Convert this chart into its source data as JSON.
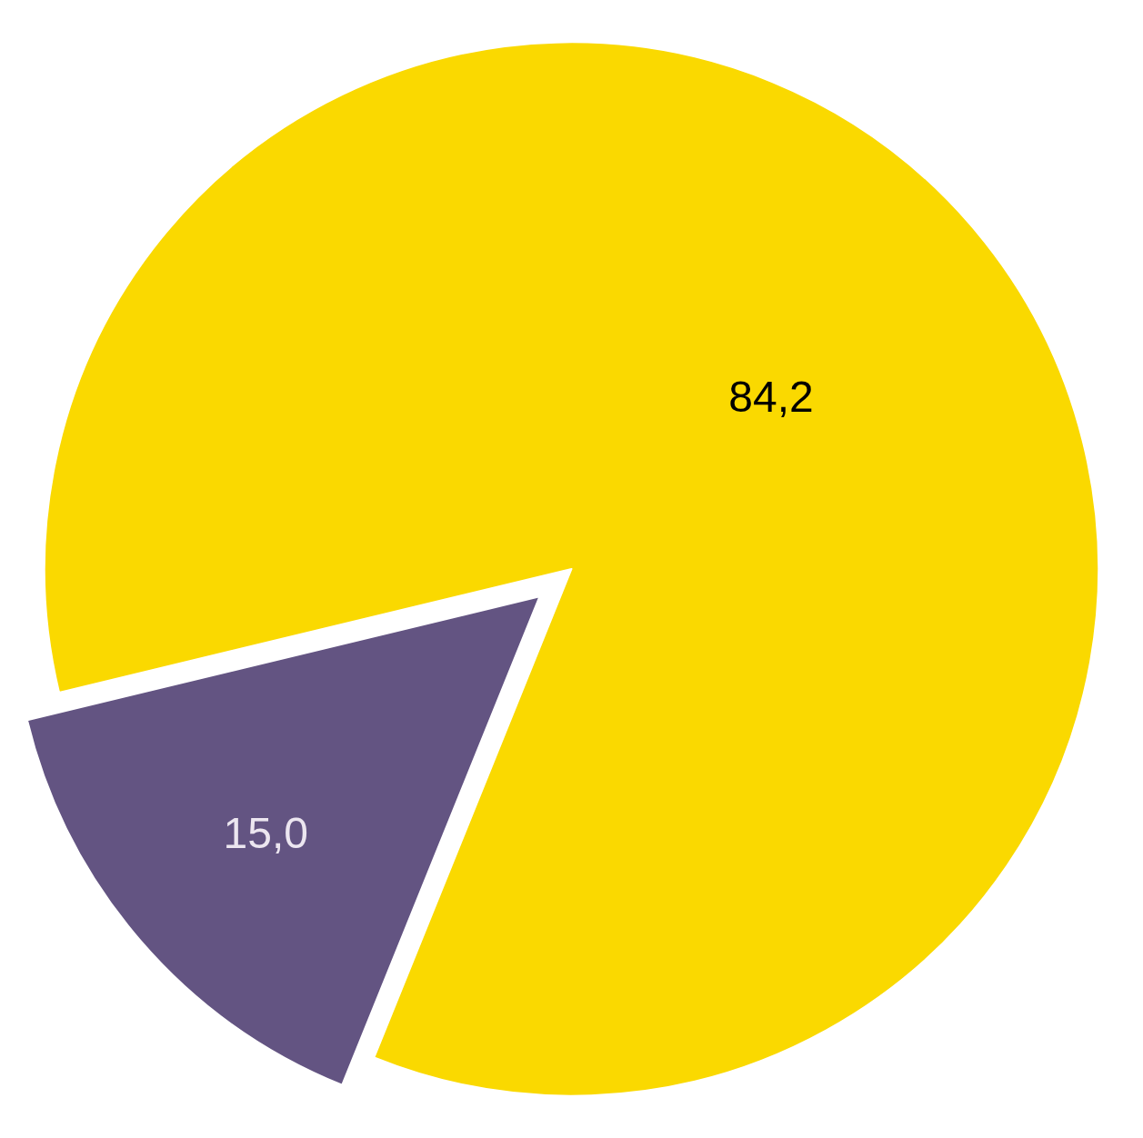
{
  "chart_data": {
    "type": "pie",
    "categories": [
      null,
      null
    ],
    "values": [
      15.0,
      84.2
    ],
    "colors": [
      "#635482",
      "#fad900"
    ],
    "value_labels": [
      "15,0",
      "84,2"
    ],
    "legend": false
  }
}
